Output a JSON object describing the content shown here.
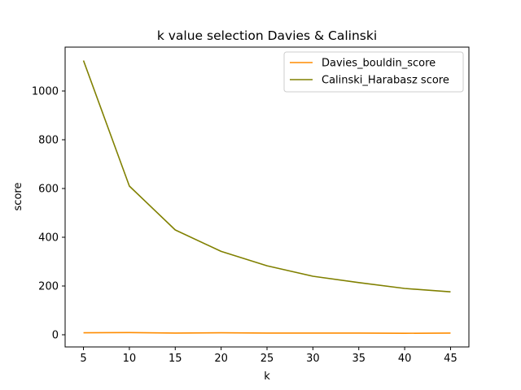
{
  "chart_data": {
    "type": "line",
    "title": "k value selection Davies & Calinski",
    "xlabel": "k",
    "ylabel": "score",
    "x": [
      5,
      10,
      15,
      20,
      25,
      30,
      35,
      40,
      45
    ],
    "xticks": [
      5,
      10,
      15,
      20,
      25,
      30,
      35,
      40,
      45
    ],
    "xlim": [
      3,
      47
    ],
    "yticks": [
      0,
      200,
      400,
      600,
      800,
      1000
    ],
    "ylim": [
      -50,
      1180
    ],
    "grid": false,
    "legend": "top-right",
    "series": [
      {
        "name": "Davies_bouldin_score",
        "color": "#ff8c00",
        "values": [
          8,
          9,
          7,
          8,
          7,
          7,
          7,
          6,
          7
        ]
      },
      {
        "name": "Calinski_Harabasz score",
        "color": "#808000",
        "values": [
          1125,
          610,
          430,
          342,
          283,
          240,
          214,
          190,
          176
        ]
      }
    ]
  }
}
